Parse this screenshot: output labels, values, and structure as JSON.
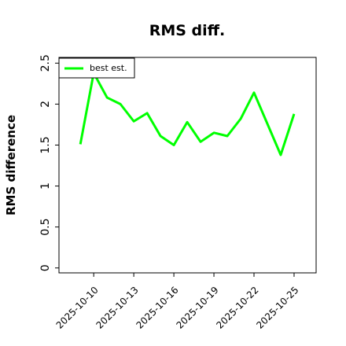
{
  "chart_data": {
    "type": "line",
    "title": "RMS diff.",
    "ylabel": "RMS difference",
    "x": [
      "2025-10-09",
      "2025-10-10",
      "2025-10-11",
      "2025-10-12",
      "2025-10-13",
      "2025-10-14",
      "2025-10-15",
      "2025-10-16",
      "2025-10-17",
      "2025-10-18",
      "2025-10-19",
      "2025-10-20",
      "2025-10-21",
      "2025-10-22",
      "2025-10-23",
      "2025-10-24",
      "2025-10-25"
    ],
    "series": [
      {
        "name": "best est.",
        "color": "#00ff00",
        "values": [
          1.51,
          2.38,
          2.08,
          2.0,
          1.79,
          1.89,
          1.61,
          1.5,
          1.78,
          1.54,
          1.65,
          1.61,
          1.82,
          2.14,
          1.76,
          1.38,
          1.88
        ]
      }
    ],
    "xlim": [
      "2025-10-07T09:36:00Z",
      "2025-10-26T15:36:00Z"
    ],
    "xticks": [
      "2025-10-10",
      "2025-10-13",
      "2025-10-16",
      "2025-10-19",
      "2025-10-22",
      "2025-10-25"
    ],
    "ylim": [
      -0.06,
      2.57
    ],
    "yticks": [
      0.0,
      0.5,
      1.0,
      1.5,
      2.0,
      2.5
    ],
    "legend": "upper left"
  }
}
